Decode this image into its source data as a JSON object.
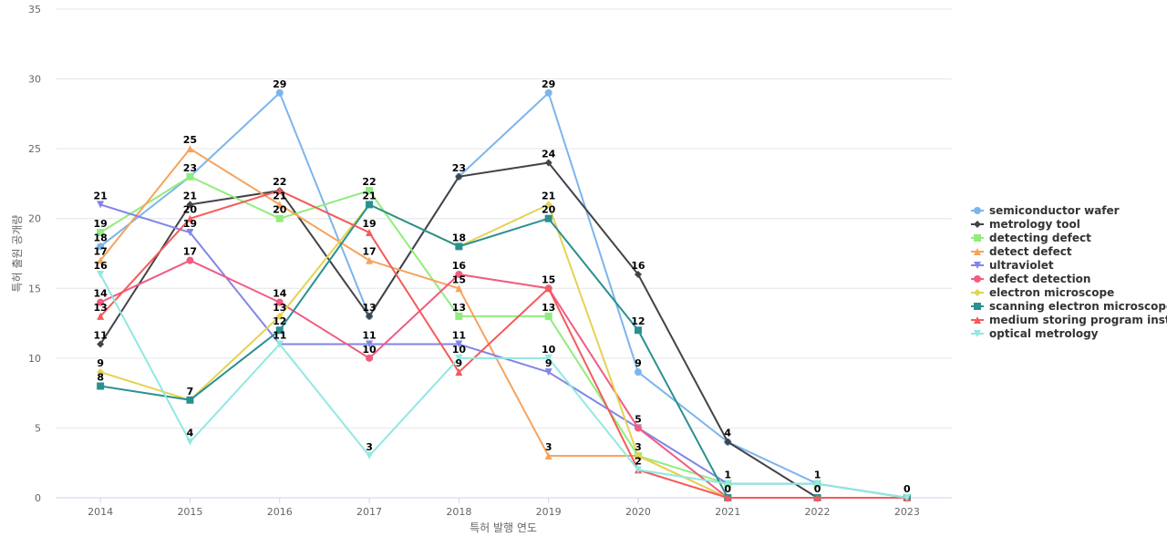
{
  "chart_data": {
    "type": "line",
    "title": "",
    "xlabel": "특허 발행 연도",
    "ylabel": "특허 출원 공개량",
    "ylim": [
      0,
      35
    ],
    "yticks": [
      0,
      5,
      10,
      15,
      20,
      25,
      30,
      35
    ],
    "grid": true,
    "legend_position": "right",
    "categories": [
      "2014",
      "2015",
      "2016",
      "2017",
      "2018",
      "2019",
      "2020",
      "2021",
      "2022",
      "2023"
    ],
    "series": [
      {
        "name": "semiconductor wafer",
        "color": "#7cb5ec",
        "marker": "circle",
        "values": [
          18,
          23,
          29,
          13,
          23,
          29,
          9,
          4,
          1,
          0
        ]
      },
      {
        "name": "metrology tool",
        "color": "#434348",
        "marker": "diamond",
        "values": [
          11,
          21,
          22,
          13,
          23,
          24,
          16,
          4,
          0,
          0
        ]
      },
      {
        "name": "detecting defect",
        "color": "#90ed7d",
        "marker": "square",
        "values": [
          19,
          23,
          20,
          22,
          13,
          13,
          3,
          1,
          1,
          0
        ]
      },
      {
        "name": "detect defect",
        "color": "#f7a35c",
        "marker": "triangle",
        "values": [
          17,
          25,
          21,
          17,
          15,
          3,
          3,
          0,
          0,
          0
        ]
      },
      {
        "name": "ultraviolet",
        "color": "#8085e9",
        "marker": "triangle-down",
        "values": [
          21,
          19,
          11,
          11,
          11,
          9,
          5,
          1,
          1,
          0
        ]
      },
      {
        "name": "defect detection",
        "color": "#f15c80",
        "marker": "circle",
        "values": [
          14,
          17,
          14,
          10,
          16,
          15,
          5,
          0,
          0,
          0
        ]
      },
      {
        "name": "electron microscope",
        "color": "#e4d354",
        "marker": "diamond",
        "values": [
          9,
          7,
          13,
          21,
          18,
          21,
          3,
          0,
          0,
          0
        ]
      },
      {
        "name": "scanning electron microscope",
        "color": "#2b908f",
        "marker": "square",
        "values": [
          8,
          7,
          12,
          21,
          18,
          20,
          12,
          0,
          0,
          0
        ]
      },
      {
        "name": "medium storing program inst...",
        "color": "#f45b5b",
        "marker": "triangle",
        "values": [
          13,
          20,
          22,
          19,
          9,
          15,
          2,
          0,
          0,
          0
        ]
      },
      {
        "name": "optical metrology",
        "color": "#91e8e1",
        "marker": "triangle-down",
        "values": [
          16,
          4,
          11,
          3,
          10,
          10,
          2,
          1,
          1,
          0
        ]
      }
    ],
    "data_labels": {
      "2014": [
        "21",
        "19",
        "18",
        "17",
        "16",
        "14",
        "13",
        "11",
        "9",
        "8"
      ],
      "2015": [
        "25",
        "23",
        "21",
        "20",
        "19",
        "17",
        "7",
        "4"
      ],
      "2016": [
        "29",
        "22",
        "21",
        "20",
        "14",
        "13",
        "12",
        "11"
      ],
      "2017": [
        "22",
        "21",
        "19",
        "17",
        "13",
        "11",
        "10",
        "3"
      ],
      "2018": [
        "23",
        "18",
        "16",
        "15",
        "13",
        "11",
        "10",
        "9"
      ],
      "2019": [
        "29",
        "24",
        "21",
        "20",
        "15",
        "13",
        "10",
        "9",
        "3"
      ],
      "2020": [
        "16",
        "12",
        "9",
        "5",
        "3",
        "2"
      ],
      "2021": [
        "4",
        "1",
        "0"
      ],
      "2022": [
        "1",
        "0"
      ],
      "2023": [
        "0"
      ]
    }
  }
}
